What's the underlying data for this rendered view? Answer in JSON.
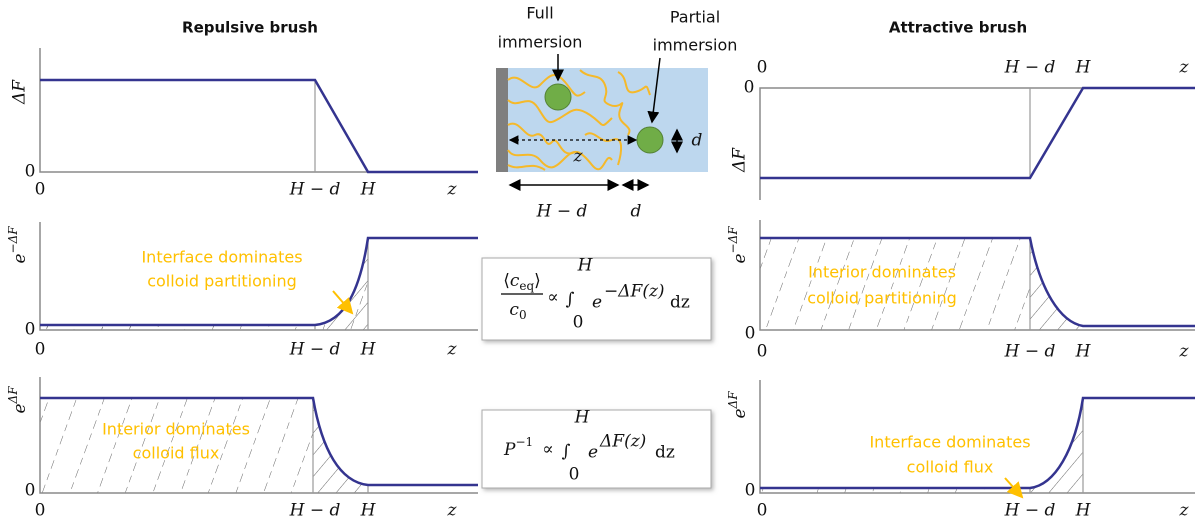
{
  "titles": {
    "repulsive": "Repulsive brush",
    "attractive": "Attractive brush"
  },
  "axis": {
    "delta_f": "ΔF",
    "e": "e",
    "neg_delta_f": "−ΔF",
    "zero": "0",
    "h_minus_d": "H − d",
    "h": "H",
    "z": "z"
  },
  "annotations": {
    "repulsive_partitioning": [
      "Interface dominates",
      "colloid partitioning"
    ],
    "repulsive_flux": [
      "Interior dominates",
      "colloid flux"
    ],
    "attractive_partitioning": [
      "Interior dominates",
      "colloid partitioning"
    ],
    "attractive_flux": [
      "Interface dominates",
      "colloid flux"
    ]
  },
  "schematic": {
    "full": [
      "Full",
      "immersion"
    ],
    "partial": [
      "Partial",
      "immersion"
    ],
    "z": "z",
    "d": "d",
    "h_minus_d": "H − d"
  },
  "formulas": {
    "partition": {
      "open": "⟨",
      "c": "c",
      "eq": "eq",
      "close": "⟩",
      "zero": "0",
      "propto": "∝",
      "integral": "∫",
      "upper": "H",
      "lower": "0",
      "e": "e",
      "exponent": "−ΔF(z)",
      "dz": "dz"
    },
    "permeability": {
      "p": "P",
      "inv": "−1",
      "propto": "∝",
      "integral": "∫",
      "upper": "H",
      "lower": "0",
      "e": "e",
      "exponent": "ΔF(z)",
      "dz": "dz"
    }
  }
}
